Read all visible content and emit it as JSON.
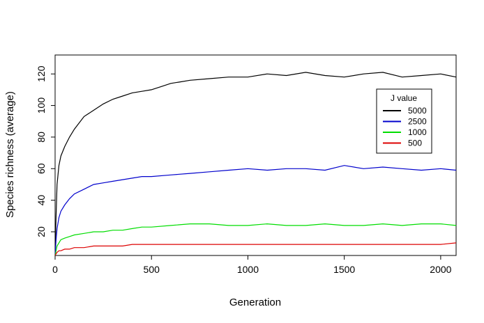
{
  "chart_data": {
    "type": "line",
    "title": "",
    "xlabel": "Generation",
    "ylabel": "Species richness (average)",
    "xlim": [
      0,
      2080
    ],
    "ylim": [
      5,
      132
    ],
    "x_ticks": [
      0,
      500,
      1000,
      1500,
      2000
    ],
    "y_ticks": [
      20,
      40,
      60,
      80,
      100,
      120
    ],
    "legend": {
      "title": "J value",
      "position": "right",
      "entries": [
        "5000",
        "2500",
        "1000",
        "500"
      ]
    },
    "series": [
      {
        "name": "5000",
        "color": "#000000",
        "x": [
          0,
          5,
          10,
          20,
          30,
          50,
          75,
          100,
          150,
          200,
          250,
          300,
          350,
          400,
          450,
          500,
          550,
          600,
          650,
          700,
          800,
          900,
          1000,
          1100,
          1200,
          1300,
          1400,
          1500,
          1600,
          1700,
          1800,
          1900,
          2000,
          2080
        ],
        "values": [
          5,
          30,
          50,
          62,
          68,
          74,
          80,
          85,
          93,
          97,
          101,
          104,
          106,
          108,
          109,
          110,
          112,
          114,
          115,
          116,
          117,
          118,
          118,
          120,
          119,
          121,
          119,
          118,
          120,
          121,
          118,
          119,
          120,
          118
        ]
      },
      {
        "name": "2500",
        "color": "#0000cc",
        "x": [
          0,
          5,
          10,
          20,
          30,
          50,
          75,
          100,
          150,
          200,
          250,
          300,
          350,
          400,
          450,
          500,
          600,
          700,
          800,
          900,
          1000,
          1100,
          1200,
          1300,
          1400,
          1500,
          1600,
          1700,
          1800,
          1900,
          2000,
          2080
        ],
        "values": [
          5,
          15,
          22,
          29,
          33,
          37,
          41,
          44,
          47,
          50,
          51,
          52,
          53,
          54,
          55,
          55,
          56,
          57,
          58,
          59,
          60,
          59,
          60,
          60,
          59,
          62,
          60,
          61,
          60,
          59,
          60,
          59
        ]
      },
      {
        "name": "1000",
        "color": "#00dd00",
        "x": [
          0,
          5,
          10,
          20,
          30,
          50,
          75,
          100,
          150,
          200,
          250,
          300,
          350,
          400,
          450,
          500,
          600,
          700,
          800,
          900,
          1000,
          1100,
          1200,
          1300,
          1400,
          1500,
          1600,
          1700,
          1800,
          1900,
          2000,
          2080
        ],
        "values": [
          5,
          8,
          11,
          13,
          15,
          16,
          17,
          18,
          19,
          20,
          20,
          21,
          21,
          22,
          23,
          23,
          24,
          25,
          25,
          24,
          24,
          25,
          24,
          24,
          25,
          24,
          24,
          25,
          24,
          25,
          25,
          24
        ]
      },
      {
        "name": "500",
        "color": "#dd0000",
        "x": [
          0,
          5,
          10,
          20,
          30,
          50,
          75,
          100,
          150,
          200,
          250,
          300,
          350,
          400,
          450,
          500,
          600,
          700,
          800,
          900,
          1000,
          1100,
          1200,
          1300,
          1400,
          1500,
          1600,
          1700,
          1800,
          1900,
          2000,
          2080
        ],
        "values": [
          5,
          6,
          7,
          8,
          8,
          9,
          9,
          10,
          10,
          11,
          11,
          11,
          11,
          12,
          12,
          12,
          12,
          12,
          12,
          12,
          12,
          12,
          12,
          12,
          12,
          12,
          12,
          12,
          12,
          12,
          12,
          13
        ]
      }
    ]
  }
}
